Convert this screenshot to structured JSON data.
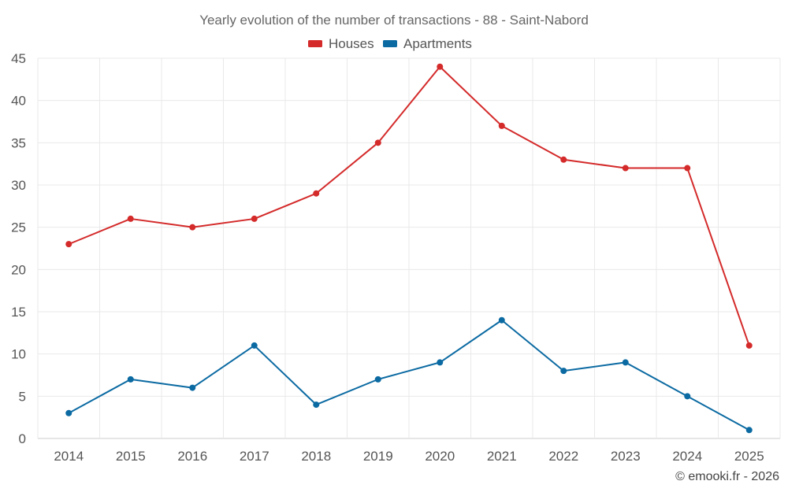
{
  "chart_data": {
    "type": "line",
    "title": "Yearly evolution of the number of transactions - 88 - Saint-Nabord",
    "categories": [
      "2014",
      "2015",
      "2016",
      "2017",
      "2018",
      "2019",
      "2020",
      "2021",
      "2022",
      "2023",
      "2024",
      "2025"
    ],
    "series": [
      {
        "name": "Houses",
        "color": "#d42a2a",
        "values": [
          23,
          26,
          25,
          26,
          29,
          35,
          44,
          37,
          33,
          32,
          32,
          11
        ]
      },
      {
        "name": "Apartments",
        "color": "#0b6aa2",
        "values": [
          3,
          7,
          6,
          11,
          4,
          7,
          9,
          14,
          8,
          9,
          5,
          1
        ]
      }
    ],
    "y_ticks": [
      "0",
      "5",
      "10",
      "15",
      "20",
      "25",
      "30",
      "35",
      "40",
      "45"
    ],
    "ylim": [
      0,
      45
    ],
    "xlabel": "",
    "ylabel": "",
    "legend_position": "top-center",
    "grid": true
  },
  "credit": "© emooki.fr - 2026"
}
